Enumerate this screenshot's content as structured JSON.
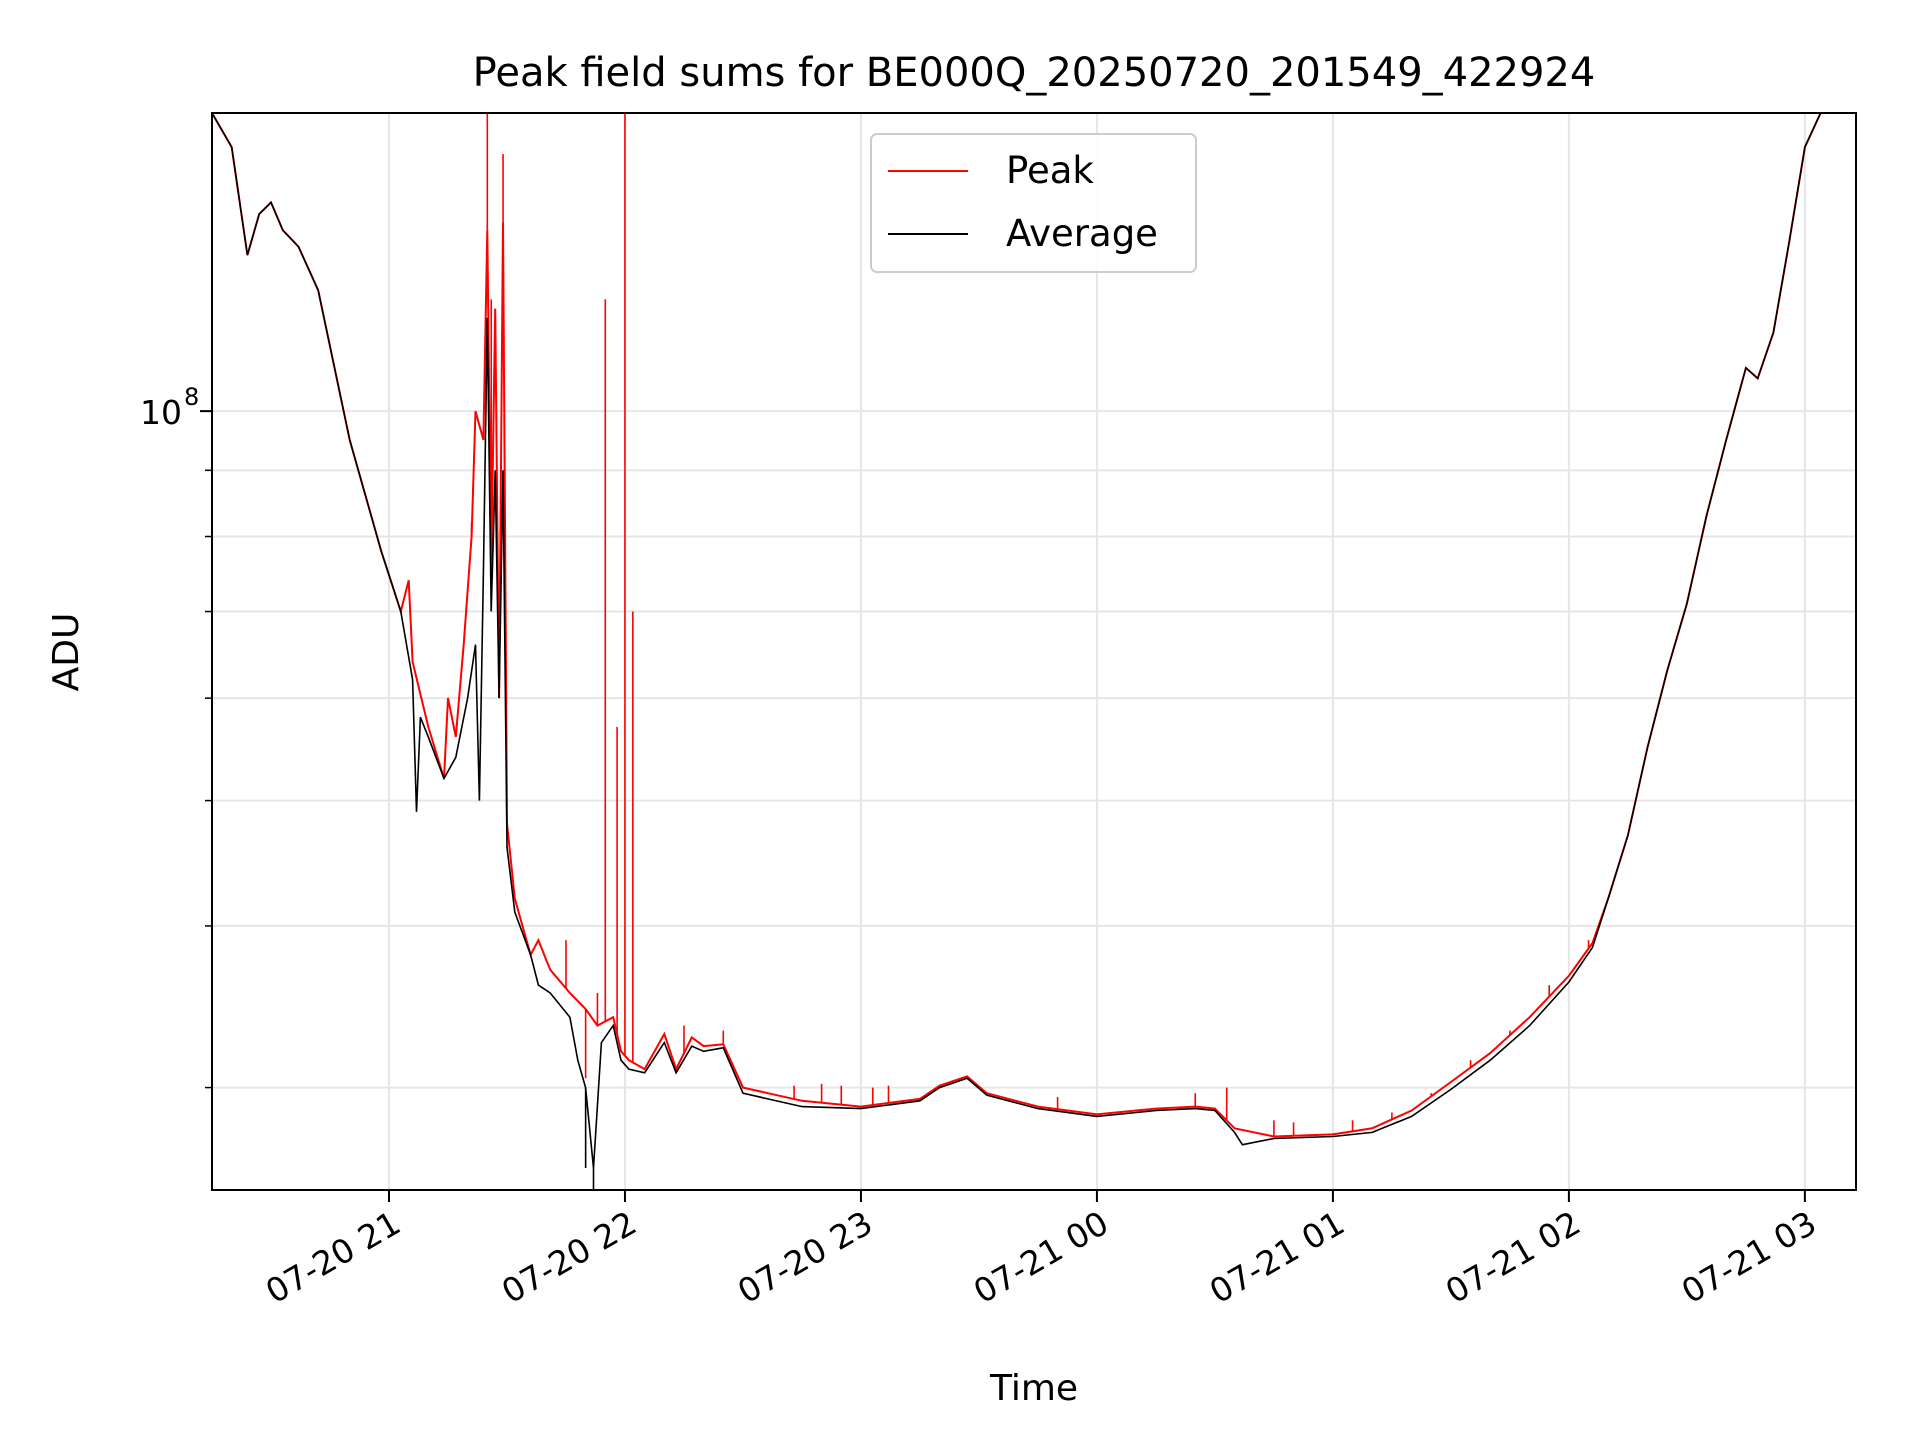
{
  "chart_data": {
    "type": "line",
    "title": "Peak field sums for BE000Q_20250720_201549_422924",
    "xlabel": "Time",
    "ylabel": "ADU",
    "yscale": "log",
    "xlim": [
      "2025-07-20 20:15",
      "2025-07-21 03:13"
    ],
    "ylim": [
      25000000,
      170000000
    ],
    "x_ticks": [
      {
        "value": "2025-07-20 21:00",
        "label": "07-20 21"
      },
      {
        "value": "2025-07-20 22:00",
        "label": "07-20 22"
      },
      {
        "value": "2025-07-20 23:00",
        "label": "07-20 23"
      },
      {
        "value": "2025-07-21 00:00",
        "label": "07-21 00"
      },
      {
        "value": "2025-07-21 01:00",
        "label": "07-21 01"
      },
      {
        "value": "2025-07-21 02:00",
        "label": "07-21 02"
      },
      {
        "value": "2025-07-21 03:00",
        "label": "07-21 03"
      }
    ],
    "y_major_ticks": [
      {
        "value": 100000000,
        "label_base": "10",
        "label_exp": "8"
      }
    ],
    "y_minor_ticks": [
      30000000,
      40000000,
      50000000,
      60000000,
      70000000,
      80000000,
      90000000,
      200000000
    ],
    "grid": true,
    "legend": {
      "placement": "top-center"
    },
    "series": [
      {
        "name": "Peak",
        "color": "#ff0000",
        "points": [
          [
            "2025-07-20 20:15",
            170000000
          ],
          [
            "2025-07-20 20:20",
            160000000
          ],
          [
            "2025-07-20 20:24",
            132000000
          ],
          [
            "2025-07-20 20:27",
            142000000
          ],
          [
            "2025-07-20 20:30",
            145000000
          ],
          [
            "2025-07-20 20:33",
            138000000
          ],
          [
            "2025-07-20 20:37",
            134000000
          ],
          [
            "2025-07-20 20:42",
            124000000
          ],
          [
            "2025-07-20 20:50",
            95000000
          ],
          [
            "2025-07-20 20:58",
            78000000
          ],
          [
            "2025-07-20 21:03",
            70000000
          ],
          [
            "2025-07-20 21:05",
            74000000
          ],
          [
            "2025-07-20 21:06",
            64000000
          ],
          [
            "2025-07-20 21:10",
            57000000
          ],
          [
            "2025-07-20 21:14",
            52000000
          ],
          [
            "2025-07-20 21:15",
            60000000
          ],
          [
            "2025-07-20 21:17",
            56000000
          ],
          [
            "2025-07-20 21:19",
            66000000
          ],
          [
            "2025-07-20 21:21",
            80000000
          ],
          [
            "2025-07-20 21:22",
            100000000
          ],
          [
            "2025-07-20 21:24",
            95000000
          ],
          [
            "2025-07-20 21:25",
            138000000
          ],
          [
            "2025-07-20 21:26",
            75000000
          ],
          [
            "2025-07-20 21:27",
            120000000
          ],
          [
            "2025-07-20 21:28",
            60000000
          ],
          [
            "2025-07-20 21:29",
            140000000
          ],
          [
            "2025-07-20 21:30",
            48000000
          ],
          [
            "2025-07-20 21:32",
            42000000
          ],
          [
            "2025-07-20 21:36",
            38000000
          ],
          [
            "2025-07-20 21:38",
            39000000
          ],
          [
            "2025-07-20 21:41",
            37000000
          ],
          [
            "2025-07-20 21:46",
            35500000
          ],
          [
            "2025-07-20 21:50",
            34500000
          ],
          [
            "2025-07-20 21:53",
            33500000
          ],
          [
            "2025-07-20 21:57",
            34000000
          ],
          [
            "2025-07-20 21:59",
            32000000
          ],
          [
            "2025-07-20 22:01",
            31500000
          ],
          [
            "2025-07-20 22:05",
            31000000
          ],
          [
            "2025-07-20 22:10",
            33000000
          ],
          [
            "2025-07-20 22:13",
            31000000
          ],
          [
            "2025-07-20 22:17",
            32800000
          ],
          [
            "2025-07-20 22:20",
            32300000
          ],
          [
            "2025-07-20 22:25",
            32400000
          ],
          [
            "2025-07-20 22:30",
            30000000
          ],
          [
            "2025-07-20 22:45",
            29300000
          ],
          [
            "2025-07-20 23:00",
            29000000
          ],
          [
            "2025-07-20 23:15",
            29400000
          ],
          [
            "2025-07-20 23:20",
            30100000
          ],
          [
            "2025-07-20 23:27",
            30600000
          ],
          [
            "2025-07-20 23:32",
            29700000
          ],
          [
            "2025-07-20 23:45",
            29000000
          ],
          [
            "2025-07-21 00:00",
            28600000
          ],
          [
            "2025-07-21 00:10",
            28800000
          ],
          [
            "2025-07-21 00:15",
            28900000
          ],
          [
            "2025-07-21 00:25",
            29000000
          ],
          [
            "2025-07-21 00:30",
            28900000
          ],
          [
            "2025-07-21 00:35",
            27900000
          ],
          [
            "2025-07-21 00:45",
            27500000
          ],
          [
            "2025-07-21 01:00",
            27600000
          ],
          [
            "2025-07-21 01:10",
            27900000
          ],
          [
            "2025-07-21 01:20",
            28800000
          ],
          [
            "2025-07-21 01:30",
            30300000
          ],
          [
            "2025-07-21 01:40",
            31900000
          ],
          [
            "2025-07-21 01:50",
            34000000
          ],
          [
            "2025-07-21 02:00",
            36600000
          ],
          [
            "2025-07-21 02:06",
            38800000
          ],
          [
            "2025-07-21 02:10",
            42000000
          ],
          [
            "2025-07-21 02:15",
            47000000
          ],
          [
            "2025-07-21 02:20",
            55000000
          ],
          [
            "2025-07-21 02:25",
            63000000
          ],
          [
            "2025-07-21 02:30",
            71000000
          ],
          [
            "2025-07-21 02:35",
            83000000
          ],
          [
            "2025-07-21 02:40",
            95000000
          ],
          [
            "2025-07-21 02:45",
            108000000
          ],
          [
            "2025-07-21 02:48",
            106000000
          ],
          [
            "2025-07-21 02:52",
            115000000
          ],
          [
            "2025-07-21 02:56",
            135000000
          ],
          [
            "2025-07-21 03:00",
            160000000
          ],
          [
            "2025-07-21 03:04",
            170000000
          ]
        ]
      },
      {
        "name": "Average",
        "color": "#000000",
        "points": [
          [
            "2025-07-20 20:15",
            170000000
          ],
          [
            "2025-07-20 20:20",
            160000000
          ],
          [
            "2025-07-20 20:24",
            132000000
          ],
          [
            "2025-07-20 20:27",
            142000000
          ],
          [
            "2025-07-20 20:30",
            145000000
          ],
          [
            "2025-07-20 20:33",
            138000000
          ],
          [
            "2025-07-20 20:37",
            134000000
          ],
          [
            "2025-07-20 20:42",
            124000000
          ],
          [
            "2025-07-20 20:50",
            95000000
          ],
          [
            "2025-07-20 20:58",
            78000000
          ],
          [
            "2025-07-20 21:03",
            70000000
          ],
          [
            "2025-07-20 21:06",
            62000000
          ],
          [
            "2025-07-20 21:07",
            49000000
          ],
          [
            "2025-07-20 21:08",
            58000000
          ],
          [
            "2025-07-20 21:10",
            56000000
          ],
          [
            "2025-07-20 21:14",
            52000000
          ],
          [
            "2025-07-20 21:17",
            54000000
          ],
          [
            "2025-07-20 21:20",
            60000000
          ],
          [
            "2025-07-20 21:22",
            66000000
          ],
          [
            "2025-07-20 21:23",
            50000000
          ],
          [
            "2025-07-20 21:24",
            75000000
          ],
          [
            "2025-07-20 21:25",
            118000000
          ],
          [
            "2025-07-20 21:26",
            70000000
          ],
          [
            "2025-07-20 21:27",
            90000000
          ],
          [
            "2025-07-20 21:28",
            60000000
          ],
          [
            "2025-07-20 21:29",
            90000000
          ],
          [
            "2025-07-20 21:30",
            46000000
          ],
          [
            "2025-07-20 21:32",
            41000000
          ],
          [
            "2025-07-20 21:36",
            38000000
          ],
          [
            "2025-07-20 21:38",
            36000000
          ],
          [
            "2025-07-20 21:41",
            35500000
          ],
          [
            "2025-07-20 21:46",
            34000000
          ],
          [
            "2025-07-20 21:48",
            31500000
          ],
          [
            "2025-07-20 21:50",
            30000000
          ],
          [
            "2025-07-20 21:52",
            26000000
          ],
          [
            "2025-07-20 21:54",
            32500000
          ],
          [
            "2025-07-20 21:57",
            33500000
          ],
          [
            "2025-07-20 21:59",
            31500000
          ],
          [
            "2025-07-20 22:01",
            31000000
          ],
          [
            "2025-07-20 22:05",
            30800000
          ],
          [
            "2025-07-20 22:10",
            32500000
          ],
          [
            "2025-07-20 22:13",
            30800000
          ],
          [
            "2025-07-20 22:17",
            32300000
          ],
          [
            "2025-07-20 22:20",
            32000000
          ],
          [
            "2025-07-20 22:25",
            32200000
          ],
          [
            "2025-07-20 22:30",
            29700000
          ],
          [
            "2025-07-20 22:45",
            29000000
          ],
          [
            "2025-07-20 23:00",
            28900000
          ],
          [
            "2025-07-20 23:15",
            29300000
          ],
          [
            "2025-07-20 23:20",
            30000000
          ],
          [
            "2025-07-20 23:27",
            30500000
          ],
          [
            "2025-07-20 23:32",
            29600000
          ],
          [
            "2025-07-20 23:45",
            28900000
          ],
          [
            "2025-07-21 00:00",
            28500000
          ],
          [
            "2025-07-21 00:10",
            28700000
          ],
          [
            "2025-07-21 00:15",
            28800000
          ],
          [
            "2025-07-21 00:25",
            28900000
          ],
          [
            "2025-07-21 00:30",
            28800000
          ],
          [
            "2025-07-21 00:35",
            27700000
          ],
          [
            "2025-07-21 00:37",
            27100000
          ],
          [
            "2025-07-21 00:45",
            27400000
          ],
          [
            "2025-07-21 01:00",
            27500000
          ],
          [
            "2025-07-21 01:10",
            27700000
          ],
          [
            "2025-07-21 01:20",
            28500000
          ],
          [
            "2025-07-21 01:30",
            29900000
          ],
          [
            "2025-07-21 01:40",
            31500000
          ],
          [
            "2025-07-21 01:50",
            33500000
          ],
          [
            "2025-07-21 02:00",
            36200000
          ],
          [
            "2025-07-21 02:06",
            38500000
          ],
          [
            "2025-07-21 02:10",
            42000000
          ],
          [
            "2025-07-21 02:15",
            47000000
          ],
          [
            "2025-07-21 02:20",
            55000000
          ],
          [
            "2025-07-21 02:25",
            63000000
          ],
          [
            "2025-07-21 02:30",
            71000000
          ],
          [
            "2025-07-21 02:35",
            83000000
          ],
          [
            "2025-07-21 02:40",
            95000000
          ],
          [
            "2025-07-21 02:45",
            108000000
          ],
          [
            "2025-07-21 02:48",
            106000000
          ],
          [
            "2025-07-21 02:52",
            115000000
          ],
          [
            "2025-07-21 02:56",
            135000000
          ],
          [
            "2025-07-21 03:00",
            160000000
          ],
          [
            "2025-07-21 03:04",
            170000000
          ]
        ],
        "spikes": [
          [
            "2025-07-20 21:50",
            26000000
          ],
          [
            "2025-07-20 21:52",
            25000000
          ],
          [
            "2025-07-21 00:37",
            27100000
          ]
        ]
      }
    ],
    "peak_spikes": [
      [
        "2025-07-20 21:25",
        192000000
      ],
      [
        "2025-07-20 21:29",
        158000000
      ],
      [
        "2025-07-20 21:26",
        122000000
      ],
      [
        "2025-07-20 21:21",
        82000000
      ],
      [
        "2025-07-20 21:06",
        64000000
      ],
      [
        "2025-07-20 21:45",
        39000000
      ],
      [
        "2025-07-20 21:50",
        30500000
      ],
      [
        "2025-07-20 21:53",
        35500000
      ],
      [
        "2025-07-20 21:55",
        122000000
      ],
      [
        "2025-07-20 21:58",
        57000000
      ],
      [
        "2025-07-20 22:00",
        192000000
      ],
      [
        "2025-07-20 22:02",
        70000000
      ],
      [
        "2025-07-20 22:15",
        33500000
      ],
      [
        "2025-07-20 22:25",
        33200000
      ],
      [
        "2025-07-20 22:43",
        30100000
      ],
      [
        "2025-07-20 22:50",
        30200000
      ],
      [
        "2025-07-20 22:55",
        30100000
      ],
      [
        "2025-07-20 23:03",
        30000000
      ],
      [
        "2025-07-20 23:07",
        30100000
      ],
      [
        "2025-07-20 23:50",
        29500000
      ],
      [
        "2025-07-21 00:25",
        29700000
      ],
      [
        "2025-07-21 00:33",
        30000000
      ],
      [
        "2025-07-21 00:45",
        28300000
      ],
      [
        "2025-07-21 00:50",
        28200000
      ],
      [
        "2025-07-21 01:05",
        28300000
      ],
      [
        "2025-07-21 01:15",
        28700000
      ],
      [
        "2025-07-21 01:25",
        29700000
      ],
      [
        "2025-07-21 01:35",
        31500000
      ],
      [
        "2025-07-21 01:45",
        33200000
      ],
      [
        "2025-07-21 01:55",
        36000000
      ],
      [
        "2025-07-21 02:05",
        39000000
      ]
    ]
  }
}
